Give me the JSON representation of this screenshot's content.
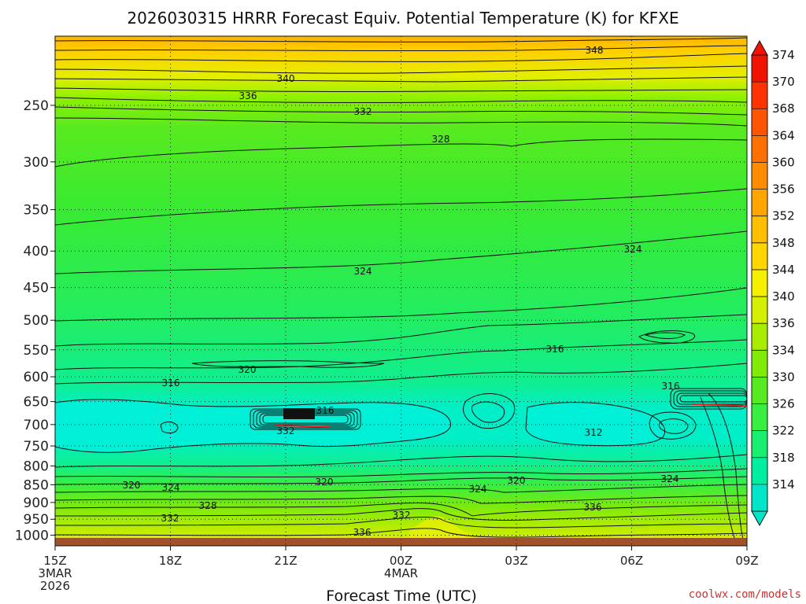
{
  "chart_data": {
    "type": "heatmap",
    "title": "2026030315 HRRR Forecast Equiv. Potential Temperature (K) for KFXE",
    "xlabel": "Forecast Time (UTC)",
    "ylabel": "",
    "y_axis_scale": "log",
    "y_axis_inverted": true,
    "y_ticks": [
      "250",
      "300",
      "350",
      "400",
      "450",
      "500",
      "550",
      "600",
      "650",
      "700",
      "750",
      "800",
      "850",
      "900",
      "950",
      "1000"
    ],
    "x_ticks": [
      {
        "label": "15Z",
        "sub1": "3MAR",
        "sub2": "2026"
      },
      {
        "label": "18Z",
        "sub1": "",
        "sub2": ""
      },
      {
        "label": "21Z",
        "sub1": "",
        "sub2": ""
      },
      {
        "label": "00Z",
        "sub1": "4MAR",
        "sub2": ""
      },
      {
        "label": "03Z",
        "sub1": "",
        "sub2": ""
      },
      {
        "label": "06Z",
        "sub1": "",
        "sub2": ""
      },
      {
        "label": "09Z",
        "sub1": "",
        "sub2": ""
      }
    ],
    "grid": true,
    "colorbar": {
      "levels": [
        "314",
        "318",
        "322",
        "326",
        "330",
        "334",
        "336",
        "340",
        "344",
        "348",
        "352",
        "356",
        "360",
        "364",
        "368",
        "370",
        "374"
      ],
      "colors": [
        "#00e6c8",
        "#00eea0",
        "#18ee70",
        "#38ee40",
        "#58ea20",
        "#80ea08",
        "#a8ec00",
        "#d4ef00",
        "#f4f000",
        "#ffd600",
        "#ffbe00",
        "#ffa500",
        "#ff8c00",
        "#ff7000",
        "#ff5400",
        "#ff3300",
        "#f01400"
      ],
      "placement": "right"
    },
    "contour_labels": [
      "348",
      "340",
      "336",
      "332",
      "328",
      "324",
      "324",
      "320",
      "316",
      "316",
      "316",
      "312",
      "332",
      "316",
      "324",
      "320",
      "320",
      "324",
      "328",
      "324",
      "320",
      "332",
      "332",
      "336",
      "336"
    ],
    "columns": [
      "15Z",
      "18Z",
      "21Z",
      "00Z",
      "03Z",
      "06Z",
      "09Z"
    ],
    "theta_e_K": {
      "250": [
        335,
        335,
        335,
        335,
        335,
        335,
        336
      ],
      "300": [
        329,
        329,
        328,
        328,
        328,
        328,
        328
      ],
      "350": [
        326,
        326,
        326,
        326,
        326,
        326,
        326
      ],
      "400": [
        324,
        324,
        324,
        324,
        325,
        325,
        325
      ],
      "450": [
        323,
        323,
        323,
        323,
        323,
        323,
        322
      ],
      "500": [
        322,
        322,
        322,
        322,
        321,
        321,
        320
      ],
      "550": [
        320,
        320,
        320,
        320,
        319,
        319,
        319
      ],
      "600": [
        318,
        318,
        318,
        318,
        318,
        318,
        318
      ],
      "650": [
        316,
        316,
        316,
        316,
        316,
        316,
        316
      ],
      "700": [
        314,
        314,
        314,
        314,
        315,
        313,
        316
      ],
      "750": [
        314,
        315,
        315,
        314,
        314,
        313,
        315
      ],
      "800": [
        316,
        316,
        316,
        316,
        316,
        316,
        318
      ],
      "850": [
        320,
        320,
        320,
        320,
        320,
        321,
        322
      ],
      "900": [
        326,
        326,
        326,
        326,
        325,
        327,
        329
      ],
      "950": [
        331,
        332,
        332,
        333,
        332,
        334,
        335
      ],
      "1000": [
        335,
        336,
        336,
        337,
        337,
        338,
        338
      ]
    }
  },
  "credit": "coolwx.com/models"
}
